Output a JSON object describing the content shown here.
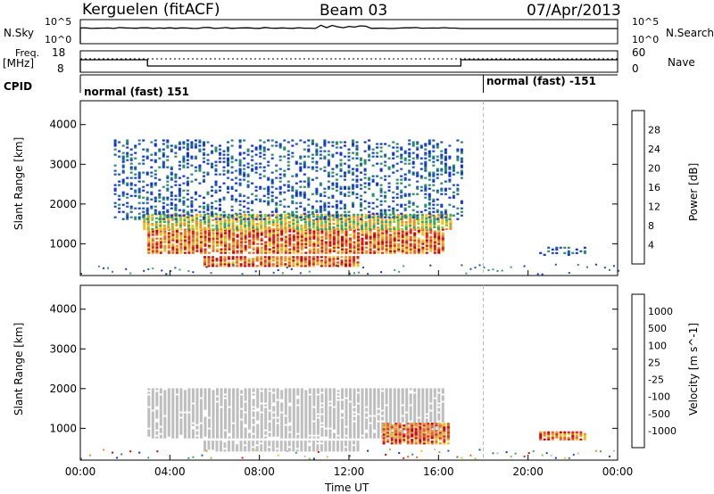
{
  "header": {
    "station": "Kerguelen (fitACF)",
    "beam": "Beam 03",
    "date": "07/Apr/2013"
  },
  "panels": {
    "nsky_label": "N.Sky",
    "nsearch_label": "N.Search",
    "freq_label": "Freq.",
    "freq_unit": "[MHz]",
    "nave_label": "Nave",
    "cpid_label": "CPID",
    "cpid_first": "normal (fast) 151",
    "cpid_second": "normal (fast) -151",
    "nsky_ticks": [
      "10^5",
      "10^0"
    ],
    "nsearch_ticks": [
      "10^5",
      "10^0"
    ],
    "freq_ticks": [
      "18",
      "8"
    ],
    "nave_ticks": [
      "60",
      "0"
    ]
  },
  "colors": {
    "power": [
      "#1030e0",
      "#1a55b8",
      "#2a8a6a",
      "#3aa55a",
      "#8cc43a",
      "#f0c020",
      "#f09020",
      "#f06018",
      "#e82010",
      "#d00000"
    ],
    "velocity": [
      "#1030e0",
      "#1a55b8",
      "#2a8a6a",
      "#3aa55a",
      "#8cc43a",
      "#bebebe",
      "#f0c020",
      "#f09020",
      "#f06018",
      "#e82010",
      "#d00000"
    ],
    "ground_scatter": "#bebebe"
  },
  "chart_data": [
    {
      "type": "heatmap",
      "title": "",
      "xlabel": "Time UT",
      "ylabel": "Slant Range [km]",
      "x_ticks": [
        "00:00",
        "04:00",
        "08:00",
        "12:00",
        "16:00",
        "20:00",
        "00:00"
      ],
      "y_ticks": [
        "1000",
        "2000",
        "3000",
        "4000"
      ],
      "ylim": [
        200,
        4600
      ],
      "colorbar_label": "Power [dB]",
      "colorbar_ticks": [
        "4",
        "8",
        "12",
        "16",
        "20",
        "24",
        "28"
      ],
      "colorbar_range": [
        0,
        32
      ],
      "regions": [
        {
          "t": [
            3.0,
            16.3
          ],
          "r": [
            750,
            1350
          ],
          "level": "max"
        },
        {
          "t": [
            2.8,
            16.5
          ],
          "r": [
            1350,
            1750
          ],
          "level": "mid"
        },
        {
          "t": [
            5.5,
            12.5
          ],
          "r": [
            420,
            650
          ],
          "level": "max"
        },
        {
          "t": [
            1.5,
            17.0
          ],
          "r": [
            1600,
            3600
          ],
          "level": "low"
        },
        {
          "t": [
            20.5,
            22.5
          ],
          "r": [
            700,
            900
          ],
          "level": "low"
        }
      ]
    },
    {
      "type": "heatmap",
      "title": "",
      "xlabel": "Time UT",
      "ylabel": "Slant Range [km]",
      "x_ticks": [
        "00:00",
        "04:00",
        "08:00",
        "12:00",
        "16:00",
        "20:00",
        "00:00"
      ],
      "y_ticks": [
        "1000",
        "2000",
        "3000",
        "4000"
      ],
      "ylim": [
        200,
        4600
      ],
      "colorbar_label": "Velocity [m s^-1]",
      "colorbar_ticks": [
        "1000",
        "500",
        "100",
        "25",
        "-25",
        "-100",
        "-500",
        "-1000"
      ],
      "regions": [
        {
          "t": [
            3.0,
            16.3
          ],
          "r": [
            750,
            2000
          ],
          "level": "ground"
        },
        {
          "t": [
            5.5,
            12.5
          ],
          "r": [
            420,
            650
          ],
          "level": "ground"
        },
        {
          "t": [
            13.5,
            16.5
          ],
          "r": [
            600,
            1100
          ],
          "level": "neg"
        },
        {
          "t": [
            20.5,
            22.5
          ],
          "r": [
            700,
            900
          ],
          "level": "neg"
        }
      ]
    }
  ],
  "time_series": {
    "cpid_change_hour": 18.0,
    "freq_low_start": 3.0,
    "freq_low_end": 17.0
  }
}
